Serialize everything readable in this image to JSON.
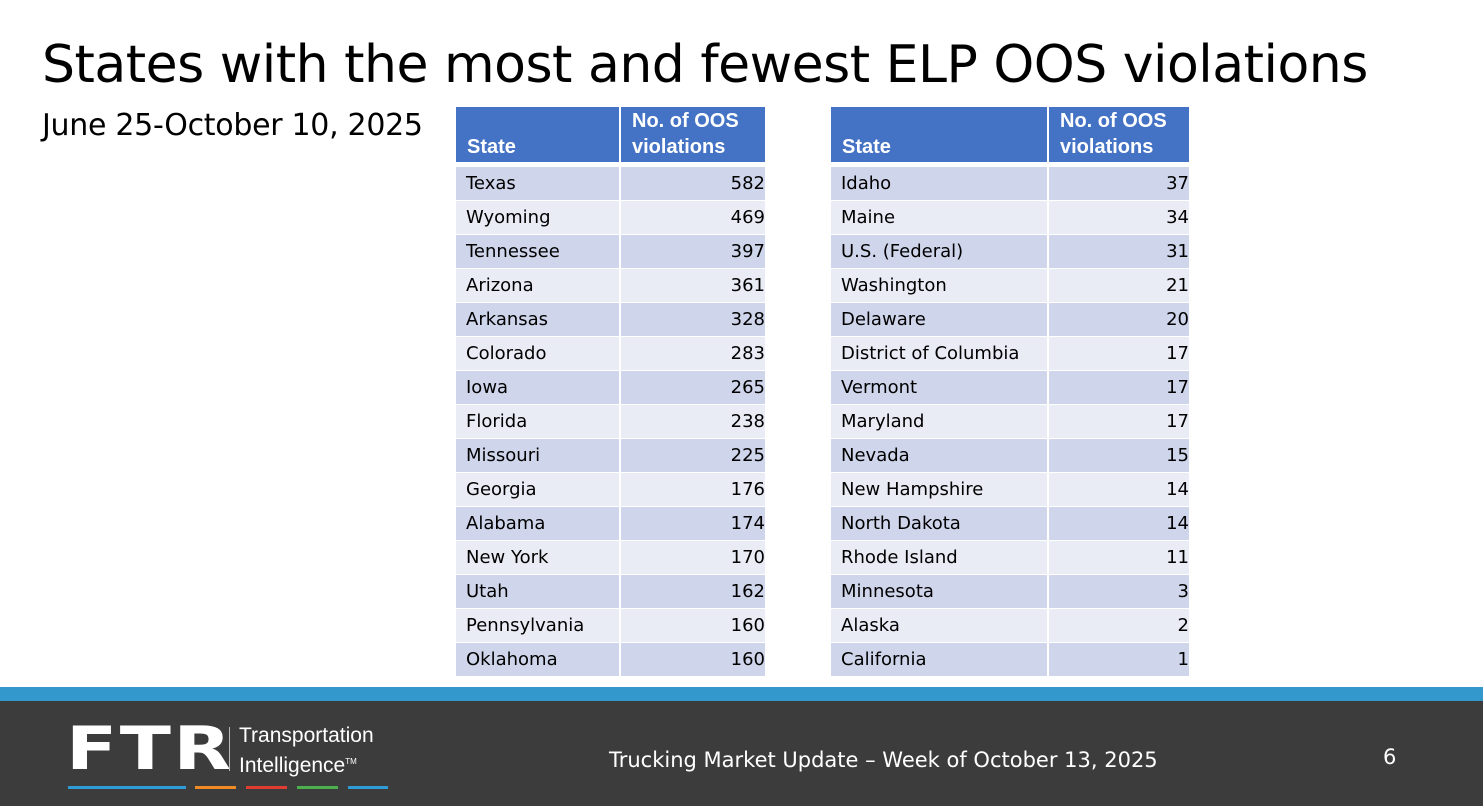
{
  "slide": {
    "title": "States with the most and fewest ELP OOS violations",
    "subtitle": "June 25-October 10, 2025"
  },
  "tables": {
    "headers": {
      "state": "State",
      "count": "No. of OOS violations"
    },
    "most": [
      {
        "state": "Texas",
        "count": "582"
      },
      {
        "state": "Wyoming",
        "count": "469"
      },
      {
        "state": "Tennessee",
        "count": "397"
      },
      {
        "state": "Arizona",
        "count": "361"
      },
      {
        "state": "Arkansas",
        "count": "328"
      },
      {
        "state": "Colorado",
        "count": "283"
      },
      {
        "state": "Iowa",
        "count": "265"
      },
      {
        "state": "Florida",
        "count": "238"
      },
      {
        "state": "Missouri",
        "count": "225"
      },
      {
        "state": "Georgia",
        "count": "176"
      },
      {
        "state": "Alabama",
        "count": "174"
      },
      {
        "state": "New York",
        "count": "170"
      },
      {
        "state": "Utah",
        "count": "162"
      },
      {
        "state": "Pennsylvania",
        "count": "160"
      },
      {
        "state": "Oklahoma",
        "count": "160"
      }
    ],
    "fewest": [
      {
        "state": "Idaho",
        "count": "37"
      },
      {
        "state": "Maine",
        "count": "34"
      },
      {
        "state": "U.S. (Federal)",
        "count": "31"
      },
      {
        "state": "Washington",
        "count": "21"
      },
      {
        "state": "Delaware",
        "count": "20"
      },
      {
        "state": "District of Columbia",
        "count": "17"
      },
      {
        "state": "Vermont",
        "count": "17"
      },
      {
        "state": "Maryland",
        "count": "17"
      },
      {
        "state": "Nevada",
        "count": "15"
      },
      {
        "state": "New Hampshire",
        "count": "14"
      },
      {
        "state": "North Dakota",
        "count": "14"
      },
      {
        "state": "Rhode Island",
        "count": "11"
      },
      {
        "state": "Minnesota",
        "count": "3"
      },
      {
        "state": "Alaska",
        "count": "2"
      },
      {
        "state": "California",
        "count": "1"
      }
    ]
  },
  "footer": {
    "logo": "FTR",
    "logo_line1": "Transportation",
    "logo_line2": "Intelligence",
    "logo_tm": "TM",
    "center_text": "Trucking Market Update – Week of October 13, 2025",
    "page_number": "6"
  },
  "colors": {
    "header_blue": "#4472c4",
    "row_dark": "#cfd5ea",
    "row_light": "#e9ebf5",
    "stripe": "#3399cc",
    "footer_bg": "#3c3c3c",
    "logo_bars": [
      "#2e9bd6",
      "#f08a24",
      "#e03c31",
      "#4cae4c",
      "#2e9bd6"
    ]
  }
}
